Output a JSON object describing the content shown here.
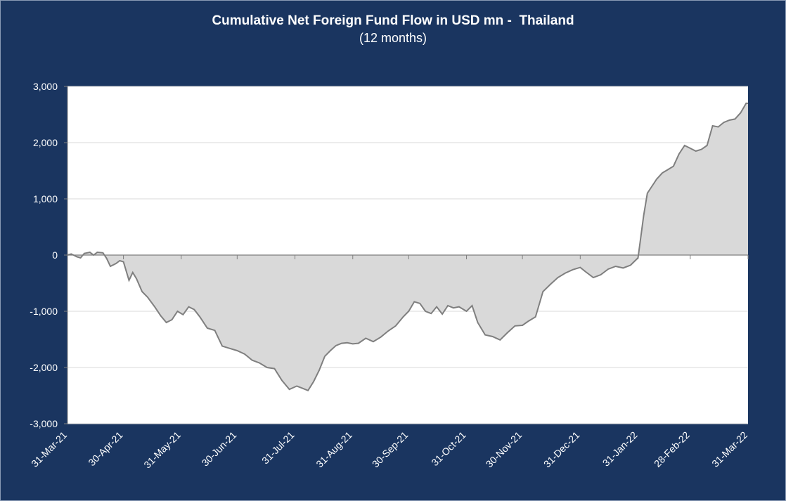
{
  "chart_data": {
    "type": "area",
    "title": "Cumulative Net Foreign Fund Flow in USD mn -  Thailand",
    "subtitle": "(12 months)",
    "xlabel": "",
    "ylabel": "",
    "ylim": [
      -3000,
      3000
    ],
    "y_ticks": [
      3000,
      2000,
      1000,
      0,
      -1000,
      -2000,
      -3000
    ],
    "y_tick_labels": [
      "3,000",
      "2,000",
      "1,000",
      "0",
      "-1,000",
      "-2,000",
      "-3,000"
    ],
    "x_range": [
      "2021-03-31",
      "2022-03-31"
    ],
    "x_ticks": [
      "2021-03-31",
      "2021-04-30",
      "2021-05-31",
      "2021-06-30",
      "2021-07-31",
      "2021-08-31",
      "2021-09-30",
      "2021-10-31",
      "2021-11-30",
      "2021-12-31",
      "2022-01-31",
      "2022-02-28",
      "2022-03-31"
    ],
    "x_tick_labels": [
      "31-Mar-21",
      "30-Apr-21",
      "31-May-21",
      "30-Jun-21",
      "31-Jul-21",
      "31-Aug-21",
      "30-Sep-21",
      "31-Oct-21",
      "30-Nov-21",
      "31-Dec-21",
      "31-Jan-22",
      "28-Feb-22",
      "31-Mar-22"
    ],
    "grid": true,
    "colors": {
      "background": "#1a3560",
      "plot": "#ffffff",
      "fill": "#d9d9d9",
      "line": "#7f7f7f",
      "grid": "#d9d9d9"
    },
    "series": [
      {
        "points": [
          [
            "2021-03-31",
            0
          ],
          [
            "2021-04-02",
            20
          ],
          [
            "2021-04-05",
            -30
          ],
          [
            "2021-04-07",
            -50
          ],
          [
            "2021-04-09",
            30
          ],
          [
            "2021-04-12",
            50
          ],
          [
            "2021-04-14",
            0
          ],
          [
            "2021-04-16",
            50
          ],
          [
            "2021-04-19",
            40
          ],
          [
            "2021-04-21",
            -60
          ],
          [
            "2021-04-23",
            -200
          ],
          [
            "2021-04-26",
            -150
          ],
          [
            "2021-04-28",
            -100
          ],
          [
            "2021-04-30",
            -120
          ],
          [
            "2021-05-03",
            -450
          ],
          [
            "2021-05-05",
            -310
          ],
          [
            "2021-05-07",
            -420
          ],
          [
            "2021-05-10",
            -650
          ],
          [
            "2021-05-13",
            -750
          ],
          [
            "2021-05-17",
            -930
          ],
          [
            "2021-05-20",
            -1080
          ],
          [
            "2021-05-23",
            -1200
          ],
          [
            "2021-05-26",
            -1150
          ],
          [
            "2021-05-29",
            -1000
          ],
          [
            "2021-06-01",
            -1060
          ],
          [
            "2021-06-04",
            -920
          ],
          [
            "2021-06-07",
            -970
          ],
          [
            "2021-06-10",
            -1100
          ],
          [
            "2021-06-14",
            -1300
          ],
          [
            "2021-06-18",
            -1340
          ],
          [
            "2021-06-22",
            -1620
          ],
          [
            "2021-06-26",
            -1660
          ],
          [
            "2021-06-30",
            -1700
          ],
          [
            "2021-07-04",
            -1760
          ],
          [
            "2021-07-08",
            -1870
          ],
          [
            "2021-07-12",
            -1920
          ],
          [
            "2021-07-16",
            -2000
          ],
          [
            "2021-07-20",
            -2020
          ],
          [
            "2021-07-24",
            -2230
          ],
          [
            "2021-07-28",
            -2390
          ],
          [
            "2021-08-01",
            -2330
          ],
          [
            "2021-08-04",
            -2370
          ],
          [
            "2021-08-07",
            -2410
          ],
          [
            "2021-08-10",
            -2250
          ],
          [
            "2021-08-13",
            -2050
          ],
          [
            "2021-08-16",
            -1800
          ],
          [
            "2021-08-19",
            -1700
          ],
          [
            "2021-08-22",
            -1610
          ],
          [
            "2021-08-25",
            -1570
          ],
          [
            "2021-08-28",
            -1560
          ],
          [
            "2021-08-31",
            -1580
          ],
          [
            "2021-09-03",
            -1570
          ],
          [
            "2021-09-07",
            -1480
          ],
          [
            "2021-09-11",
            -1540
          ],
          [
            "2021-09-15",
            -1460
          ],
          [
            "2021-09-19",
            -1350
          ],
          [
            "2021-09-23",
            -1260
          ],
          [
            "2021-09-27",
            -1100
          ],
          [
            "2021-09-30",
            -1000
          ],
          [
            "2021-10-03",
            -830
          ],
          [
            "2021-10-06",
            -860
          ],
          [
            "2021-10-09",
            -1000
          ],
          [
            "2021-10-12",
            -1040
          ],
          [
            "2021-10-15",
            -920
          ],
          [
            "2021-10-18",
            -1050
          ],
          [
            "2021-10-21",
            -900
          ],
          [
            "2021-10-24",
            -940
          ],
          [
            "2021-10-27",
            -920
          ],
          [
            "2021-10-31",
            -1000
          ],
          [
            "2021-11-03",
            -900
          ],
          [
            "2021-11-06",
            -1200
          ],
          [
            "2021-11-10",
            -1420
          ],
          [
            "2021-11-14",
            -1450
          ],
          [
            "2021-11-18",
            -1510
          ],
          [
            "2021-11-22",
            -1380
          ],
          [
            "2021-11-26",
            -1260
          ],
          [
            "2021-11-30",
            -1250
          ],
          [
            "2021-12-03",
            -1180
          ],
          [
            "2021-12-07",
            -1100
          ],
          [
            "2021-12-11",
            -650
          ],
          [
            "2021-12-15",
            -520
          ],
          [
            "2021-12-19",
            -400
          ],
          [
            "2021-12-23",
            -320
          ],
          [
            "2021-12-27",
            -260
          ],
          [
            "2021-12-31",
            -220
          ],
          [
            "2022-01-03",
            -300
          ],
          [
            "2022-01-07",
            -400
          ],
          [
            "2022-01-11",
            -350
          ],
          [
            "2022-01-15",
            -250
          ],
          [
            "2022-01-19",
            -200
          ],
          [
            "2022-01-23",
            -230
          ],
          [
            "2022-01-27",
            -180
          ],
          [
            "2022-01-31",
            -50
          ],
          [
            "2022-02-01",
            200
          ],
          [
            "2022-02-03",
            700
          ],
          [
            "2022-02-05",
            1100
          ],
          [
            "2022-02-08",
            1250
          ],
          [
            "2022-02-10",
            1350
          ],
          [
            "2022-02-13",
            1460
          ],
          [
            "2022-02-16",
            1520
          ],
          [
            "2022-02-19",
            1580
          ],
          [
            "2022-02-22",
            1800
          ],
          [
            "2022-02-25",
            1950
          ],
          [
            "2022-02-28",
            1900
          ],
          [
            "2022-03-03",
            1850
          ],
          [
            "2022-03-06",
            1880
          ],
          [
            "2022-03-09",
            1950
          ],
          [
            "2022-03-12",
            2300
          ],
          [
            "2022-03-15",
            2280
          ],
          [
            "2022-03-18",
            2360
          ],
          [
            "2022-03-21",
            2400
          ],
          [
            "2022-03-24",
            2420
          ],
          [
            "2022-03-27",
            2530
          ],
          [
            "2022-03-30",
            2700
          ],
          [
            "2022-03-31",
            2700
          ]
        ]
      }
    ]
  }
}
